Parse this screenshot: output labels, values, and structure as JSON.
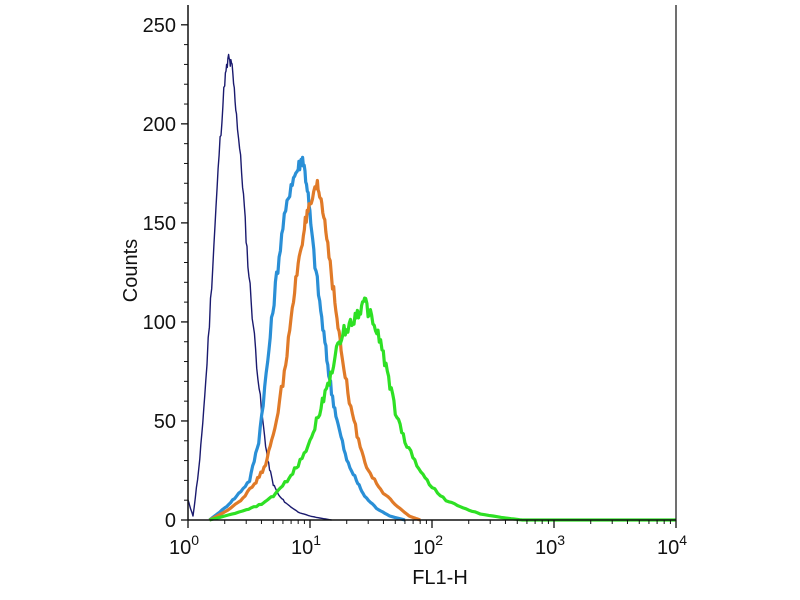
{
  "chart_data": {
    "type": "line",
    "title": "",
    "xlabel": "FL1-H",
    "ylabel": "Counts",
    "x_scale": "log",
    "xlim": [
      1,
      10000
    ],
    "ylim": [
      0,
      260
    ],
    "x_ticks": [
      {
        "value": 1,
        "base": "10",
        "exp": "0"
      },
      {
        "value": 10,
        "base": "10",
        "exp": "1"
      },
      {
        "value": 100,
        "base": "10",
        "exp": "2"
      },
      {
        "value": 1000,
        "base": "10",
        "exp": "3"
      },
      {
        "value": 10000,
        "base": "10",
        "exp": "4"
      }
    ],
    "y_ticks": [
      0,
      50,
      100,
      150,
      200,
      250
    ],
    "grid": false,
    "legend": "none",
    "series": [
      {
        "color": "#1a1a6e",
        "stroke": "thin",
        "x": [
          1.0,
          1.1,
          1.25,
          1.4,
          1.6,
          1.8,
          2.0,
          2.15,
          2.3,
          2.5,
          2.8,
          3.1,
          3.5,
          4.0,
          4.5,
          5.0,
          5.6,
          6.5,
          8.0,
          10.0,
          12.0,
          15.0
        ],
        "y": [
          10,
          2,
          30,
          70,
          130,
          185,
          222,
          233,
          228,
          205,
          170,
          130,
          92,
          55,
          30,
          18,
          12,
          8,
          4,
          2,
          1,
          0
        ]
      },
      {
        "color": "#2a8fd6",
        "stroke": "thick",
        "x": [
          1.5,
          2.0,
          2.5,
          3.2,
          3.8,
          4.5,
          5.2,
          6.0,
          7.0,
          8.0,
          8.7,
          9.5,
          10.5,
          12.0,
          13.5,
          15.0,
          17.0,
          20.0,
          24.0,
          28.0,
          35.0,
          45.0,
          60.0
        ],
        "y": [
          0,
          6,
          12,
          20,
          40,
          80,
          118,
          148,
          170,
          178,
          183,
          168,
          140,
          110,
          85,
          65,
          48,
          30,
          20,
          12,
          6,
          2,
          0
        ]
      },
      {
        "color": "#e07a28",
        "stroke": "thick",
        "x": [
          1.5,
          2.0,
          2.7,
          3.5,
          4.2,
          5.0,
          6.0,
          7.0,
          8.0,
          9.0,
          10.0,
          11.5,
          12.5,
          14.0,
          16.0,
          18.0,
          21.0,
          25.0,
          30.0,
          38.0,
          50.0,
          65.0,
          80.0
        ],
        "y": [
          0,
          4,
          10,
          18,
          26,
          42,
          70,
          100,
          130,
          148,
          158,
          168,
          160,
          140,
          110,
          85,
          60,
          40,
          25,
          15,
          8,
          2,
          0
        ]
      },
      {
        "color": "#2ee024",
        "stroke": "thick",
        "x": [
          1.5,
          2.0,
          3.0,
          4.0,
          5.0,
          6.5,
          8.0,
          10.0,
          12.0,
          14.0,
          16.5,
          19.0,
          22.0,
          25.0,
          28.0,
          32.0,
          37.0,
          43.0,
          50.0,
          60.0,
          75.0,
          95.0,
          130.0,
          180.0,
          250.0,
          400.0,
          550.0,
          1000.0,
          10000.0
        ],
        "y": [
          0,
          2,
          5,
          8,
          12,
          20,
          28,
          40,
          55,
          68,
          85,
          95,
          100,
          105,
          110,
          102,
          92,
          75,
          55,
          40,
          28,
          18,
          10,
          6,
          3,
          1,
          0,
          0,
          0
        ]
      }
    ]
  }
}
